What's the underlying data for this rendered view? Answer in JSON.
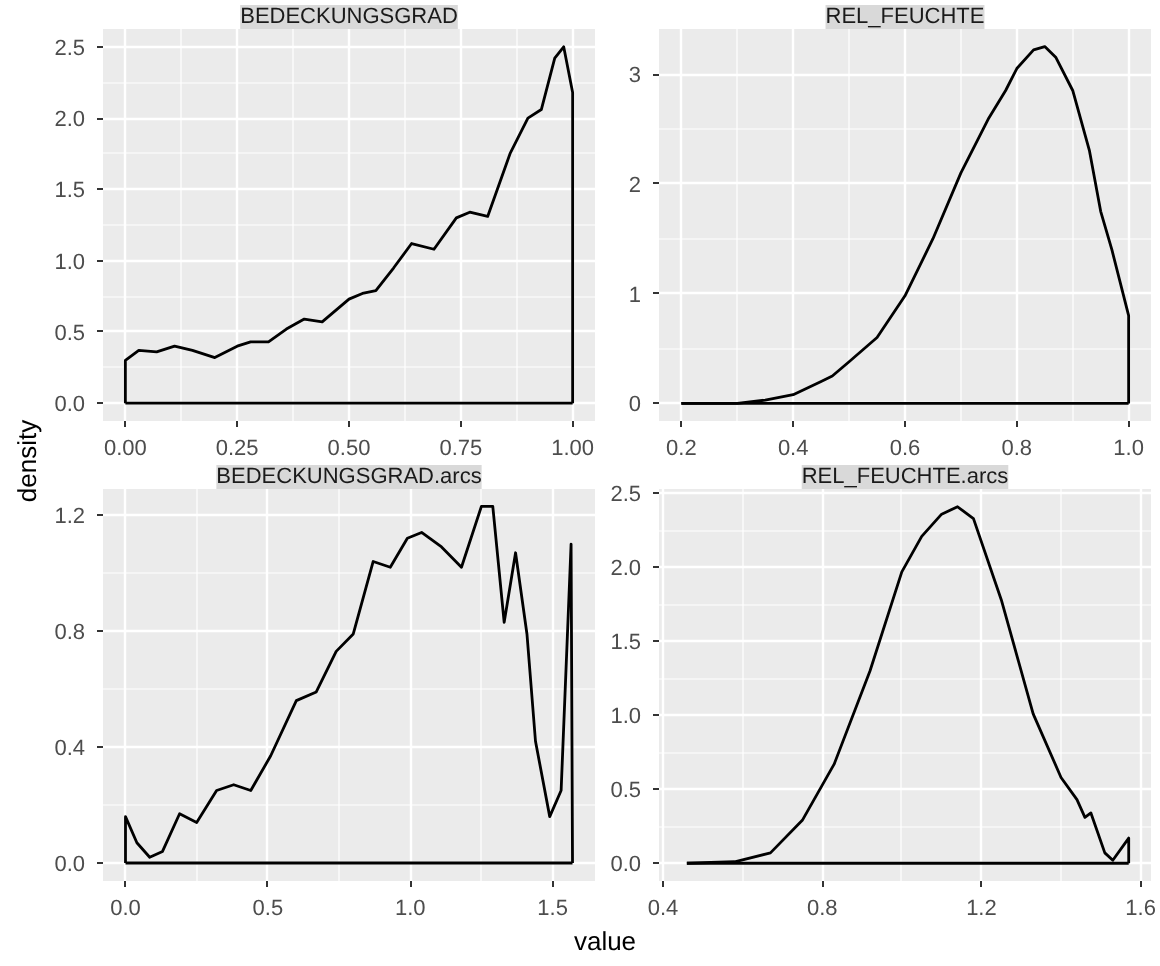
{
  "chart_data": [
    {
      "type": "line",
      "title": "BEDECKUNGSGRAD",
      "ylabel": "density",
      "grid": true,
      "line_style": "solid",
      "xlim": [
        -0.05,
        1.05
      ],
      "ylim": [
        -0.125,
        2.625
      ],
      "xticks": [
        {
          "value": 0,
          "label": "0.00"
        },
        {
          "value": 0.25,
          "label": "0.25"
        },
        {
          "value": 0.5,
          "label": "0.50"
        },
        {
          "value": 0.75,
          "label": "0.75"
        },
        {
          "value": 1,
          "label": "1.00"
        }
      ],
      "yticks": [
        {
          "value": 0,
          "label": "0.0"
        },
        0.5,
        {
          "value": 1,
          "label": "1.0"
        },
        1.5,
        {
          "value": 2,
          "label": "2.0"
        },
        2.5
      ],
      "series": [
        {
          "color": "#000000",
          "x": [
            0,
            0,
            0.03,
            0.07,
            0.11,
            0.15,
            0.2,
            0.25,
            0.28,
            0.32,
            0.36,
            0.4,
            0.44,
            0.5,
            0.53,
            0.56,
            0.6,
            0.64,
            0.69,
            0.74,
            0.77,
            0.81,
            0.86,
            0.9,
            0.93,
            0.96,
            0.98,
            1,
            1
          ],
          "values": [
            0,
            0.3,
            0.37,
            0.36,
            0.4,
            0.37,
            0.32,
            0.4,
            0.43,
            0.43,
            0.52,
            0.59,
            0.57,
            0.73,
            0.77,
            0.79,
            0.95,
            1.12,
            1.08,
            1.3,
            1.34,
            1.31,
            1.75,
            2.0,
            2.06,
            2.42,
            2.5,
            2.18,
            0
          ]
        },
        {
          "color": "#000000",
          "x": [
            0,
            1
          ],
          "values": [
            0,
            0
          ]
        }
      ]
    },
    {
      "type": "line",
      "title": "REL_FEUCHTE",
      "grid": true,
      "line_style": "solid",
      "xlim": [
        0.16,
        1.04
      ],
      "ylim": [
        -0.16,
        3.41
      ],
      "xticks": [
        0.2,
        0.4,
        0.6,
        0.8,
        {
          "value": 1,
          "label": "1.0"
        }
      ],
      "yticks": [
        0,
        1,
        2,
        3
      ],
      "series": [
        {
          "color": "#000000",
          "x": [
            0.2,
            0.3,
            0.35,
            0.4,
            0.45,
            0.47,
            0.5,
            0.55,
            0.6,
            0.65,
            0.7,
            0.75,
            0.78,
            0.8,
            0.83,
            0.85,
            0.87,
            0.9,
            0.93,
            0.95,
            0.97,
            0.99,
            1,
            1
          ],
          "values": [
            0,
            0,
            0.03,
            0.08,
            0.2,
            0.25,
            0.38,
            0.6,
            0.98,
            1.5,
            2.1,
            2.6,
            2.85,
            3.05,
            3.22,
            3.25,
            3.15,
            2.85,
            2.3,
            1.75,
            1.4,
            1.0,
            0.8,
            0
          ]
        },
        {
          "color": "#000000",
          "x": [
            0.2,
            1
          ],
          "values": [
            0,
            0
          ]
        }
      ]
    },
    {
      "type": "line",
      "title": "BEDECKUNGSGRAD.arcs",
      "xlabel": "value",
      "grid": true,
      "line_style": "solid",
      "xlim": [
        -0.079,
        1.649
      ],
      "ylim": [
        -0.062,
        1.29
      ],
      "xticks": [
        {
          "value": 0,
          "label": "0.0"
        },
        0.5,
        {
          "value": 1,
          "label": "1.0"
        },
        1.5
      ],
      "yticks": [
        {
          "value": 0,
          "label": "0.0"
        },
        0.4,
        0.8,
        1.2
      ],
      "series": [
        {
          "color": "#000000",
          "x": [
            0,
            0,
            0.04,
            0.085,
            0.13,
            0.19,
            0.25,
            0.32,
            0.38,
            0.44,
            0.51,
            0.6,
            0.67,
            0.74,
            0.8,
            0.87,
            0.93,
            0.99,
            1.04,
            1.11,
            1.18,
            1.25,
            1.29,
            1.33,
            1.37,
            1.41,
            1.44,
            1.49,
            1.53,
            1.565,
            1.57
          ],
          "values": [
            0,
            0.16,
            0.07,
            0.02,
            0.04,
            0.17,
            0.14,
            0.25,
            0.27,
            0.25,
            0.37,
            0.56,
            0.59,
            0.73,
            0.79,
            1.04,
            1.02,
            1.12,
            1.14,
            1.09,
            1.02,
            1.23,
            1.23,
            0.83,
            1.07,
            0.79,
            0.42,
            0.16,
            0.25,
            1.1,
            0
          ]
        },
        {
          "color": "#000000",
          "x": [
            0,
            1.57
          ],
          "values": [
            0,
            0
          ]
        }
      ]
    },
    {
      "type": "line",
      "title": "REL_FEUCHTE.arcs",
      "grid": true,
      "line_style": "solid",
      "xlim": [
        0.39,
        1.626
      ],
      "ylim": [
        -0.12,
        2.53
      ],
      "xticks": [
        0.4,
        0.8,
        1.2,
        1.6
      ],
      "yticks": [
        {
          "value": 0,
          "label": "0.0"
        },
        0.5,
        {
          "value": 1,
          "label": "1.0"
        },
        1.5,
        {
          "value": 2,
          "label": "2.0"
        },
        2.5
      ],
      "series": [
        {
          "color": "#000000",
          "x": [
            0.46,
            0.58,
            0.67,
            0.75,
            0.83,
            0.92,
            1.0,
            1.05,
            1.1,
            1.14,
            1.18,
            1.25,
            1.33,
            1.4,
            1.44,
            1.46,
            1.475,
            1.51,
            1.53,
            1.57,
            1.57
          ],
          "values": [
            0,
            0.01,
            0.07,
            0.29,
            0.67,
            1.3,
            1.97,
            2.21,
            2.36,
            2.41,
            2.33,
            1.78,
            1.01,
            0.58,
            0.43,
            0.31,
            0.34,
            0.07,
            0.02,
            0.17,
            0
          ]
        },
        {
          "color": "#000000",
          "x": [
            0.46,
            1.57
          ],
          "values": [
            0,
            0
          ]
        }
      ]
    }
  ]
}
